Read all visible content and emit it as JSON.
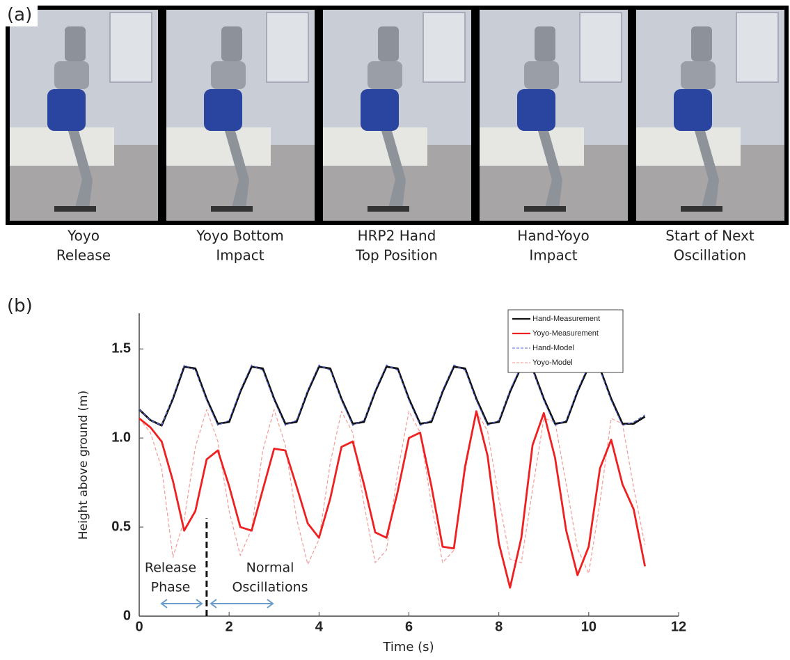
{
  "panel_a": {
    "label": "(a)",
    "captions": [
      [
        "Yoyo",
        "Release"
      ],
      [
        "Yoyo Bottom",
        "Impact"
      ],
      [
        "HRP2 Hand",
        "Top Position"
      ],
      [
        "Hand-Yoyo",
        "Impact"
      ],
      [
        "Start of Next",
        "Oscillation"
      ]
    ]
  },
  "chart_data": {
    "type": "line",
    "panel_label": "(b)",
    "xlabel": "Time (s)",
    "ylabel": "Height above ground (m)",
    "x": [
      0,
      0.25,
      0.5,
      0.75,
      1,
      1.25,
      1.5,
      1.75,
      2,
      2.25,
      2.5,
      2.75,
      3,
      3.25,
      3.5,
      3.75,
      4,
      4.25,
      4.5,
      4.75,
      5,
      5.25,
      5.5,
      5.75,
      6,
      6.25,
      6.5,
      6.75,
      7,
      7.25,
      7.5,
      7.75,
      8,
      8.25,
      8.5,
      8.75,
      9,
      9.25,
      9.5,
      9.75,
      10,
      10.25,
      10.5,
      10.75,
      11,
      11.25
    ],
    "series": [
      {
        "name": "Hand-Measurement",
        "color": "#111111",
        "style": "solid",
        "values": [
          1.16,
          1.1,
          1.07,
          1.22,
          1.4,
          1.39,
          1.22,
          1.08,
          1.09,
          1.26,
          1.4,
          1.39,
          1.22,
          1.08,
          1.09,
          1.26,
          1.4,
          1.39,
          1.22,
          1.08,
          1.09,
          1.26,
          1.4,
          1.39,
          1.22,
          1.08,
          1.09,
          1.26,
          1.4,
          1.39,
          1.22,
          1.08,
          1.09,
          1.26,
          1.4,
          1.39,
          1.22,
          1.08,
          1.09,
          1.26,
          1.4,
          1.39,
          1.22,
          1.08,
          1.08,
          1.12
        ]
      },
      {
        "name": "Yoyo-Measurement",
        "color": "#ee2020",
        "style": "solid",
        "values": [
          1.11,
          1.06,
          0.98,
          0.76,
          0.48,
          0.59,
          0.88,
          0.93,
          0.73,
          0.5,
          0.48,
          0.71,
          0.94,
          0.93,
          0.73,
          0.52,
          0.44,
          0.66,
          0.95,
          0.98,
          0.74,
          0.47,
          0.44,
          0.7,
          1.0,
          1.03,
          0.73,
          0.39,
          0.38,
          0.84,
          1.15,
          0.9,
          0.41,
          0.16,
          0.44,
          0.96,
          1.14,
          0.89,
          0.48,
          0.23,
          0.39,
          0.83,
          0.99,
          0.74,
          0.6,
          0.28
        ]
      },
      {
        "name": "Hand-Model",
        "color": "#5566dd",
        "style": "dashed",
        "values": [
          1.16,
          1.1,
          1.07,
          1.23,
          1.41,
          1.38,
          1.21,
          1.07,
          1.1,
          1.27,
          1.41,
          1.38,
          1.21,
          1.07,
          1.1,
          1.27,
          1.41,
          1.38,
          1.21,
          1.07,
          1.1,
          1.27,
          1.41,
          1.38,
          1.21,
          1.07,
          1.1,
          1.27,
          1.41,
          1.38,
          1.21,
          1.07,
          1.1,
          1.27,
          1.41,
          1.38,
          1.21,
          1.07,
          1.1,
          1.27,
          1.41,
          1.38,
          1.21,
          1.07,
          1.09,
          1.13
        ]
      },
      {
        "name": "Yoyo-Model",
        "color": "#f59a9a",
        "style": "dashed",
        "values": [
          1.11,
          1.03,
          0.83,
          0.33,
          0.54,
          0.95,
          1.16,
          0.98,
          0.59,
          0.34,
          0.49,
          0.93,
          1.16,
          0.96,
          0.55,
          0.29,
          0.43,
          0.86,
          1.15,
          1.03,
          0.63,
          0.3,
          0.37,
          0.81,
          1.15,
          1.03,
          0.63,
          0.3,
          0.37,
          0.81,
          1.15,
          1.04,
          0.66,
          0.32,
          0.3,
          0.71,
          1.11,
          1.09,
          0.74,
          0.38,
          0.24,
          0.64,
          1.11,
          1.08,
          0.72,
          0.4
        ]
      }
    ],
    "xlim": [
      0,
      12
    ],
    "xticks": [
      0,
      2,
      4,
      6,
      8,
      10,
      12
    ],
    "ylim": [
      0,
      1.7
    ],
    "yticks": [
      0,
      0.5,
      {
        "value": 1,
        "label": "1.0"
      },
      1.5
    ],
    "legend": "upper right",
    "phase_boundary": {
      "x": 1.5,
      "y": 0.55
    },
    "annotations": [
      [
        "Release",
        "Phase"
      ],
      [
        "Normal",
        "Oscillations"
      ]
    ]
  }
}
